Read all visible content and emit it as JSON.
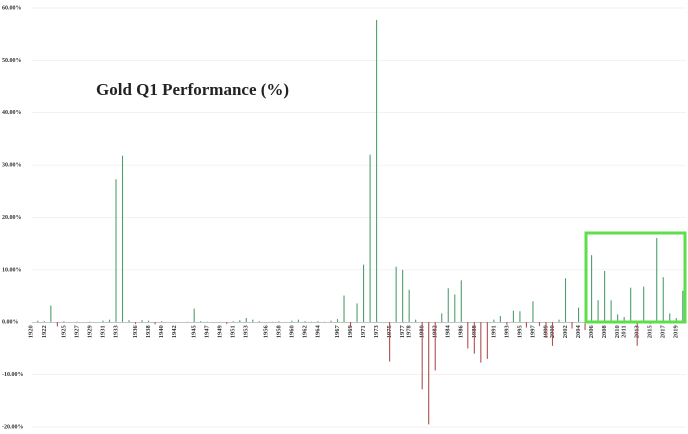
{
  "chart_data": {
    "type": "bar",
    "title": "Gold Q1 Performance (%)",
    "categories": [
      "1920",
      null,
      "1922",
      null,
      null,
      "1925",
      null,
      "1927",
      null,
      "1929",
      null,
      "1931",
      null,
      "1933",
      null,
      null,
      "1936",
      null,
      "1938",
      null,
      "1940",
      null,
      "1942",
      null,
      null,
      "1945",
      null,
      "1947",
      null,
      "1949",
      null,
      "1951",
      null,
      "1953",
      null,
      null,
      "1956",
      null,
      "1958",
      null,
      "1960",
      null,
      "1962",
      null,
      "1964",
      null,
      null,
      "1967",
      null,
      "1969",
      null,
      "1971",
      null,
      "1973",
      null,
      "1975",
      null,
      "1977",
      "1978",
      null,
      "1980",
      null,
      "1982",
      null,
      "1984",
      null,
      "1986",
      null,
      "1988",
      null,
      null,
      "1991",
      null,
      "1993",
      null,
      "1995",
      null,
      "1997",
      null,
      "1999",
      "2000",
      null,
      "2002",
      null,
      "2004",
      null,
      "2006",
      null,
      "2008",
      null,
      "2010",
      "2011",
      null,
      "2013",
      null,
      "2015",
      null,
      "2017",
      null,
      "2019",
      null
    ],
    "values": [
      0,
      0.3,
      0.2,
      3.2,
      -0.8,
      0.2,
      0,
      0.1,
      0,
      0.1,
      0,
      0.3,
      0.5,
      27.3,
      31.8,
      0.4,
      -0.3,
      0.4,
      0.3,
      -0.4,
      0.2,
      0,
      0,
      0,
      0.1,
      2.6,
      0.2,
      0.1,
      0,
      0,
      -0.3,
      0.2,
      0.4,
      0.8,
      0.5,
      0.2,
      0,
      0.1,
      0.2,
      0,
      0.3,
      0.5,
      0.2,
      0.1,
      0.2,
      0.1,
      0.3,
      0.6,
      5.1,
      -1,
      3.6,
      11,
      32,
      57.7,
      0,
      -7.5,
      10.6,
      10,
      6.2,
      0.5,
      -12.8,
      -19.5,
      -9.2,
      1.7,
      6.5,
      5.3,
      8,
      -5,
      -6,
      -7.7,
      -7,
      0.5,
      1.2,
      -0.5,
      2.2,
      2.1,
      -1,
      4,
      -0.7,
      -3,
      -4.5,
      0.5,
      8.4,
      -1.2,
      2.8,
      -1.5,
      12.8,
      4.2,
      9.8,
      4.2,
      1.5,
      1,
      6.6,
      -4.5,
      6.8,
      -0.3,
      16.1,
      8.6,
      1.7,
      0.8,
      6
    ],
    "color": "#4e9e6c",
    "negative_color": "#b05050",
    "ylim": [
      -20,
      60
    ],
    "yticks": [
      {
        "value": -20,
        "label": "-20.00%"
      },
      {
        "value": -10,
        "label": "-10.00%"
      },
      {
        "value": 0,
        "label": "0.00%"
      },
      {
        "value": 10,
        "label": "10.00%"
      },
      {
        "value": 20,
        "label": "20.00%"
      },
      {
        "value": 30,
        "label": "30.00%"
      },
      {
        "value": 40,
        "label": "40.00%"
      },
      {
        "value": 50,
        "label": "50.00%"
      },
      {
        "value": 60,
        "label": "60.00%"
      }
    ],
    "grid": true
  }
}
